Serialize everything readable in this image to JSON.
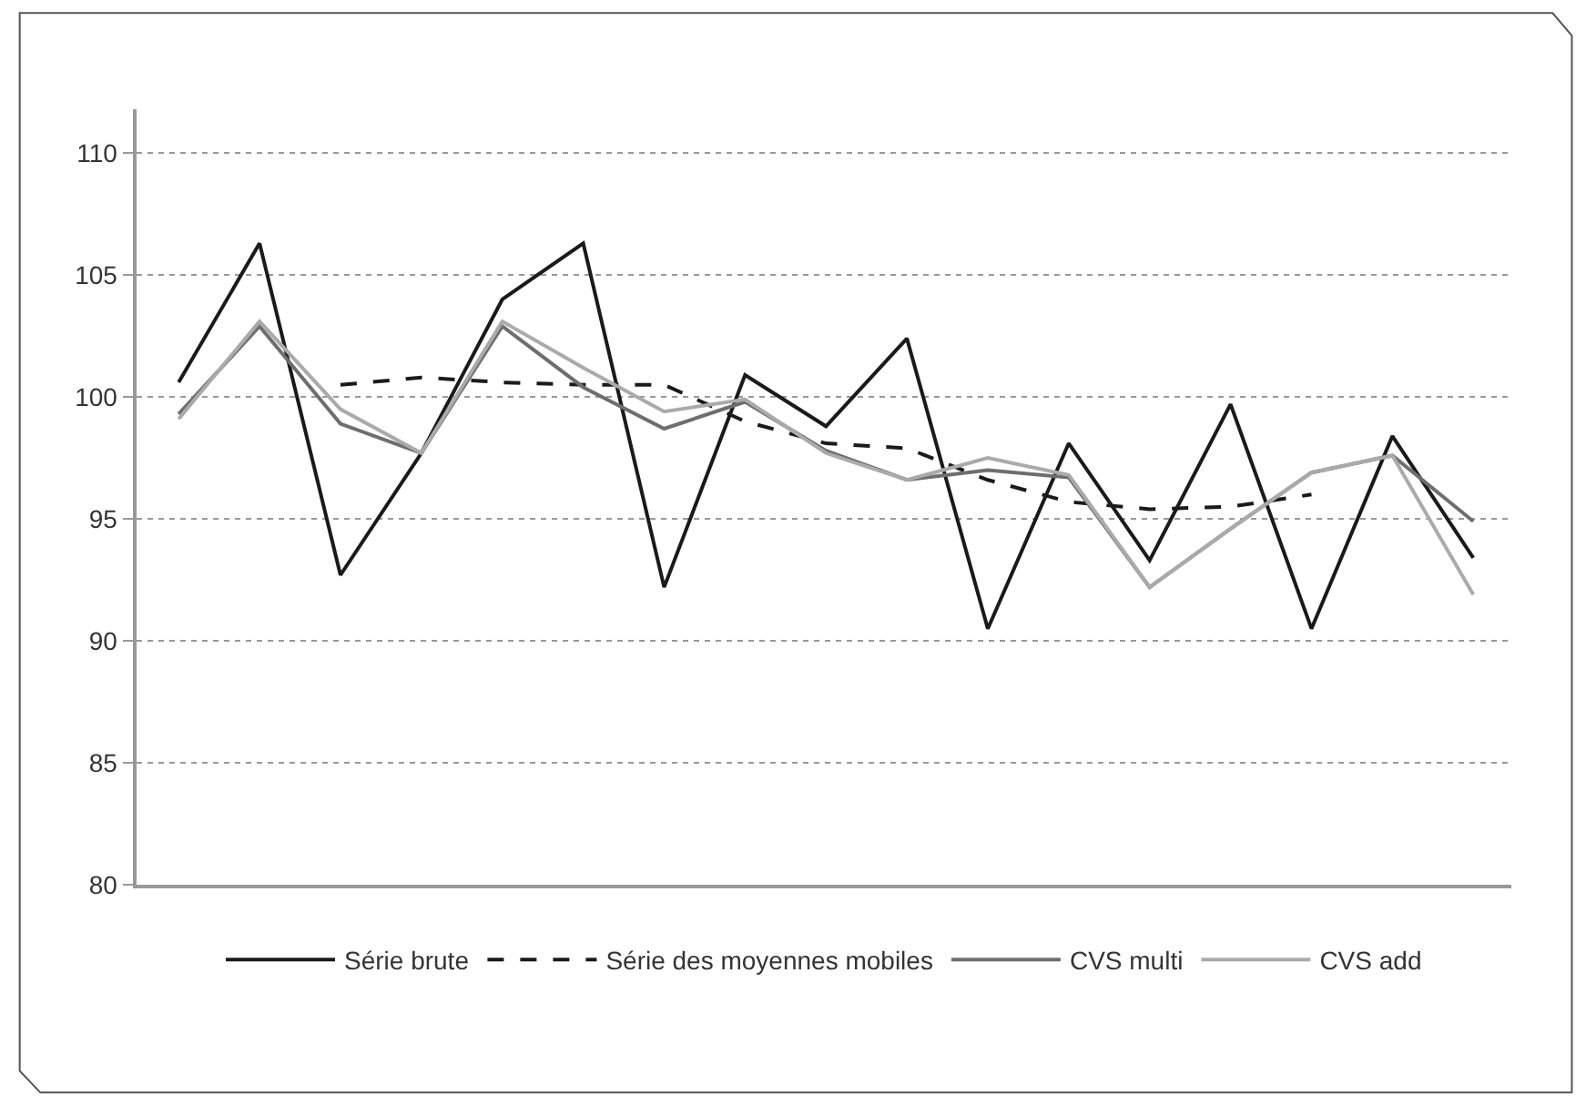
{
  "chart_data": {
    "type": "line",
    "categories": [
      null,
      null,
      null,
      null,
      null,
      null,
      null,
      null,
      null,
      null,
      null,
      null,
      null,
      null,
      null,
      null,
      null
    ],
    "series": [
      {
        "name": "Série brute",
        "color": "#1a1a1a",
        "line_style": "solid",
        "values": [
          100.6,
          106.3,
          92.7,
          97.7,
          104.0,
          106.3,
          92.2,
          100.9,
          98.8,
          102.4,
          90.5,
          98.1,
          93.3,
          99.7,
          90.5,
          98.4,
          93.4
        ]
      },
      {
        "name": "Série des moyennes mobiles",
        "color": "#1a1a1a",
        "line_style": "dashed",
        "values": [
          null,
          null,
          100.5,
          100.8,
          100.6,
          100.5,
          100.5,
          99.0,
          98.1,
          97.9,
          96.6,
          95.7,
          95.4,
          95.5,
          96.0,
          null,
          null
        ]
      },
      {
        "name": "CVS multi",
        "color": "#6e6e6e",
        "line_style": "solid",
        "values": [
          99.3,
          102.9,
          98.9,
          97.7,
          102.9,
          100.4,
          98.7,
          99.8,
          97.8,
          96.6,
          97.0,
          96.7,
          92.2,
          94.6,
          96.9,
          97.6,
          94.9
        ]
      },
      {
        "name": "CVS add",
        "color": "#aaaaaa",
        "line_style": "solid",
        "values": [
          99.1,
          103.1,
          99.5,
          97.7,
          103.1,
          101.2,
          99.4,
          99.9,
          97.7,
          96.6,
          97.5,
          96.8,
          92.2,
          94.6,
          96.9,
          97.6,
          91.9
        ]
      }
    ],
    "ylim": [
      80,
      111.8
    ],
    "yticks": [
      80,
      85,
      90,
      95,
      100,
      105,
      110
    ],
    "grid": "y",
    "legend": "bottom",
    "marker": "none",
    "tick_labels": "y"
  }
}
